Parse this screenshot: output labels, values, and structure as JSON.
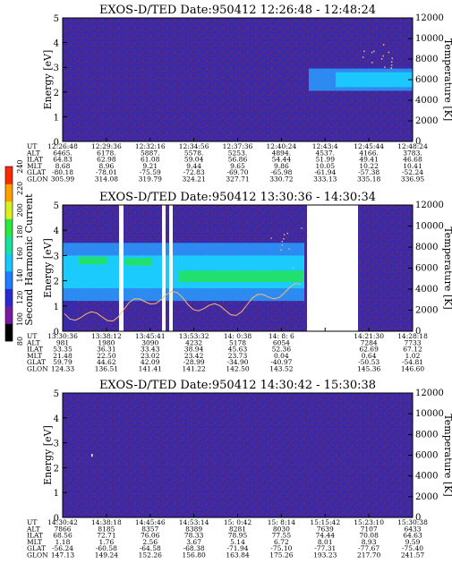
{
  "colors": {
    "background": "#3a2aa8",
    "speckle": "#7a2a55",
    "band_blue": "#2a9cff",
    "band_cyan": "#19d6ff",
    "band_green": "#22e070",
    "gap": "#ffffff",
    "trace": "#ffb86b"
  },
  "colorbar": {
    "label": "Second Harmonic Current",
    "ticks": [
      "80",
      "100",
      "120",
      "140",
      "160",
      "180",
      "200",
      "220",
      "240"
    ],
    "colors": [
      "#000000",
      "#7a1aa0",
      "#2a2ad0",
      "#1e7cff",
      "#16c8ff",
      "#18e0a0",
      "#2ae840",
      "#d8f020",
      "#ffa000",
      "#ff2a00"
    ]
  },
  "chart_data": [
    {
      "type": "heatmap",
      "title": "EXOS-D/TED   Date:950412   12:26:48 - 12:48:24",
      "ylabel": "Energy [eV]",
      "y2label": "Temperature [K]",
      "ylim": [
        0,
        5
      ],
      "y2lim": [
        0,
        12000
      ],
      "yticks": [
        "0",
        "1",
        "2",
        "3",
        "4",
        "5"
      ],
      "y2ticks": [
        "0",
        "2000",
        "4000",
        "6000",
        "8000",
        "10000",
        "12000"
      ],
      "row_labels": [
        "UT",
        "ALT",
        "ILAT",
        "MLT",
        "GLAT",
        "GLON"
      ],
      "columns": [
        [
          "12:26:48",
          "6465.",
          "64.83",
          "8.68",
          "-80.18",
          "305.99"
        ],
        [
          "12:29:36",
          "6178.",
          "62.98",
          "8.96",
          "-78.01",
          "314.08"
        ],
        [
          "12:32:16",
          "5887.",
          "61.08",
          "9.21",
          "-75.59",
          "319.79"
        ],
        [
          "12:34:56",
          "5578.",
          "59.04",
          "9.44",
          "-72.83",
          "324.21"
        ],
        [
          "12:37:36",
          "5253.",
          "56.86",
          "9.65",
          "-69.70",
          "327.71"
        ],
        [
          "12:40:24",
          "4894.",
          "54.44",
          "9.86",
          "-65.98",
          "330.72"
        ],
        [
          "12:43:4",
          "4537.",
          "51.99",
          "10.05",
          "-61.94",
          "333.13"
        ],
        [
          "12:45:44",
          "4166.",
          "49.41",
          "10.22",
          "-57.38",
          "335.18"
        ],
        [
          "12:48:24",
          "3783.",
          "46.68",
          "10.41",
          "-52.24",
          "336.95"
        ]
      ]
    },
    {
      "type": "heatmap",
      "title": "EXOS-D/TED   Date:950412   13:30:36 - 14:30:34",
      "ylabel": "Energy [eV]",
      "y2label": "Temperature [K]",
      "ylim": [
        0,
        5
      ],
      "y2lim": [
        0,
        12000
      ],
      "yticks": [
        "0",
        "1",
        "2",
        "3",
        "4",
        "5"
      ],
      "y2ticks": [
        "0",
        "2000",
        "4000",
        "6000",
        "8000",
        "10000",
        "12000"
      ],
      "row_labels": [
        "UT",
        "ALT",
        "ILAT",
        "MLT",
        "GLAT",
        "GLON"
      ],
      "columns": [
        [
          "13:30:36",
          "981",
          "53.35",
          "21.48",
          "59.79",
          "124.33"
        ],
        [
          "13:38:12",
          "1980",
          "36.31",
          "22.50",
          "44.62",
          "136.51"
        ],
        [
          "13:45:41",
          "3090",
          "33.43",
          "23.02",
          "42.09",
          "141.41"
        ],
        [
          "13:53:32",
          "4232",
          "38.94",
          "23.42",
          "-28.99",
          "141.22"
        ],
        [
          "14: 0:38",
          "5178",
          "45.63",
          "23.73",
          "-34.90",
          "142.50"
        ],
        [
          "14: 8: 6",
          "6054",
          "52.36",
          "0.04",
          "-40.97",
          "143.52"
        ],
        [
          "",
          "",
          "",
          "",
          "",
          ""
        ],
        [
          "14:21:30",
          "7284",
          "62.69",
          "0.64",
          "-50.53",
          "145.36"
        ],
        [
          "14:28:18",
          "7733",
          "67.12",
          "1.02",
          "-54.81",
          "146.60"
        ]
      ]
    },
    {
      "type": "heatmap",
      "title": "EXOS-D/TED   Date:950412   14:30:42 - 15:30:38",
      "ylabel": "Energy [eV]",
      "y2label": "Temperature [K]",
      "ylim": [
        0,
        5
      ],
      "y2lim": [
        0,
        12000
      ],
      "yticks": [
        "0",
        "1",
        "2",
        "3",
        "4",
        "5"
      ],
      "y2ticks": [
        "0",
        "2000",
        "4000",
        "6000",
        "8000",
        "10000",
        "12000"
      ],
      "row_labels": [
        "UT",
        "ALT",
        "ILAT",
        "MLT",
        "GLAT",
        "GLON"
      ],
      "columns": [
        [
          "14:30:42",
          "7866",
          "68.56",
          "1.18",
          "-56.24",
          "147.13"
        ],
        [
          "14:38:18",
          "8185",
          "72.71",
          "1.76",
          "-60.58",
          "149.24"
        ],
        [
          "14:45:46",
          "8357",
          "76.06",
          "2.56",
          "-64.58",
          "152.26"
        ],
        [
          "14:53:14",
          "8389",
          "78.33",
          "3.67",
          "-68.38",
          "156.80"
        ],
        [
          "15: 0:42",
          "8281",
          "78.95",
          "5.14",
          "-71.94",
          "163.84"
        ],
        [
          "15: 8:14",
          "8030",
          "77.55",
          "6.72",
          "-75.10",
          "175.26"
        ],
        [
          "15:15:42",
          "7639",
          "74.44",
          "8.01",
          "-77.31",
          "193.23"
        ],
        [
          "15:23:10",
          "7107",
          "70.08",
          "8.93",
          "-77.67",
          "217.70"
        ],
        [
          "15:30:38",
          "6433",
          "64.63",
          "9.59",
          "-75.40",
          "241.57"
        ]
      ]
    }
  ]
}
